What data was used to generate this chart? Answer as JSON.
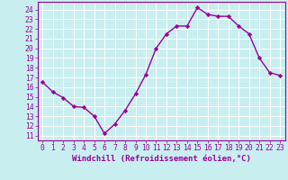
{
  "x": [
    0,
    1,
    2,
    3,
    4,
    5,
    6,
    7,
    8,
    9,
    10,
    11,
    12,
    13,
    14,
    15,
    16,
    17,
    18,
    19,
    20,
    21,
    22,
    23
  ],
  "y": [
    16.5,
    15.5,
    14.9,
    14.0,
    13.9,
    13.0,
    11.2,
    12.2,
    13.6,
    15.3,
    17.3,
    20.0,
    21.5,
    22.3,
    22.3,
    24.2,
    23.5,
    23.3,
    23.3,
    22.3,
    21.5,
    19.0,
    17.5,
    17.2
  ],
  "line_color": "#990099",
  "marker": "D",
  "markersize": 2.2,
  "linewidth": 1.0,
  "xlabel": "Windchill (Refroidissement éolien,°C)",
  "xlabel_fontsize": 6.5,
  "ylabel_ticks": [
    11,
    12,
    13,
    14,
    15,
    16,
    17,
    18,
    19,
    20,
    21,
    22,
    23,
    24
  ],
  "xticks": [
    0,
    1,
    2,
    3,
    4,
    5,
    6,
    7,
    8,
    9,
    10,
    11,
    12,
    13,
    14,
    15,
    16,
    17,
    18,
    19,
    20,
    21,
    22,
    23
  ],
  "xlim": [
    -0.5,
    23.5
  ],
  "ylim": [
    10.5,
    24.8
  ],
  "background_color": "#c8eef0",
  "grid_color": "#ffffff",
  "tick_color": "#990099",
  "tick_fontsize": 5.8,
  "tick_label_color": "#990099"
}
